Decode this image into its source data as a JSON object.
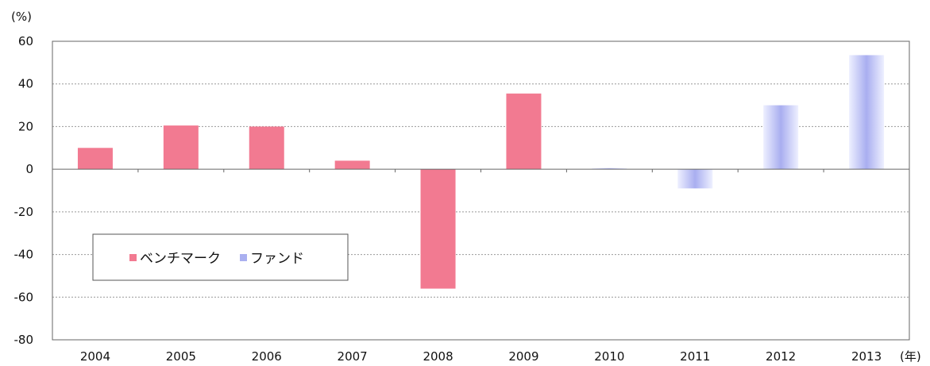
{
  "chart_data": {
    "type": "bar",
    "categories": [
      "2004",
      "2005",
      "2006",
      "2007",
      "2008",
      "2009",
      "2010",
      "2011",
      "2012",
      "2013"
    ],
    "series": [
      {
        "name": "ベンチマーク",
        "values": [
          10,
          20.5,
          20,
          4,
          -56,
          35.5,
          null,
          null,
          null,
          null
        ],
        "color": "#f27a91"
      },
      {
        "name": "ファンド",
        "values": [
          null,
          null,
          null,
          null,
          null,
          null,
          0.5,
          -9,
          30,
          53.5
        ],
        "color": "#aab0f0"
      }
    ],
    "y_unit_label": "(%)",
    "x_unit_label": "(年)",
    "ylim": [
      -80,
      60
    ],
    "yticks": [
      -80,
      -60,
      -40,
      -20,
      0,
      20,
      40,
      60
    ],
    "grid": "horizontal dotted",
    "legend_position": "lower-left"
  }
}
